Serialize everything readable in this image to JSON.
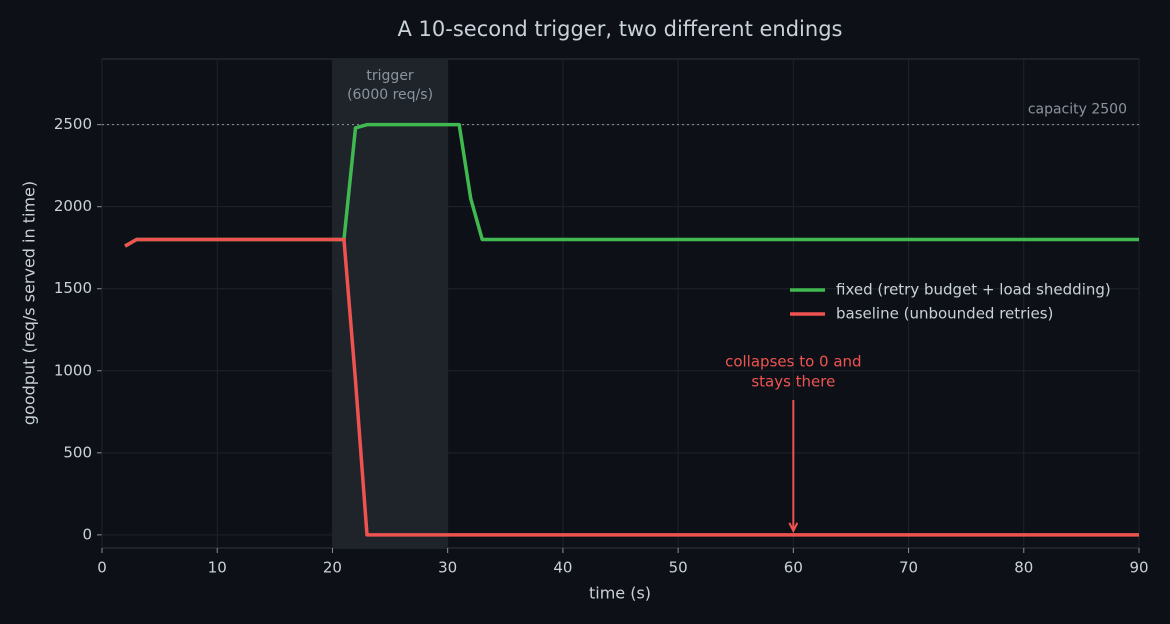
{
  "chart_data": {
    "type": "line",
    "title": "A 10-second trigger, two different endings",
    "x_label": "time (s)",
    "y_label": "goodput (req/s served in time)",
    "x": [
      2,
      3,
      21,
      22,
      23,
      31,
      32,
      33,
      90
    ],
    "series": [
      {
        "name": "fixed (retry budget + load shedding)",
        "color": "#3fb950",
        "values": [
          1760,
          1800,
          1800,
          2480,
          2500,
          2500,
          2050,
          1800,
          1800
        ]
      },
      {
        "name": "baseline (unbounded retries)",
        "color": "#ef5350",
        "values": [
          1760,
          1800,
          1800,
          940,
          0,
          0,
          0,
          0,
          0
        ]
      }
    ],
    "xlim": [
      0,
      90
    ],
    "xticks": [
      0,
      10,
      20,
      30,
      40,
      50,
      60,
      70,
      80,
      90
    ],
    "ylim": [
      -80,
      2900
    ],
    "yticks": [
      0,
      500,
      1000,
      1500,
      2000,
      2500
    ],
    "grid": true,
    "legend": "right",
    "shade": {
      "x0": 20,
      "x1": 30,
      "label": [
        "trigger",
        "(6000 req/s)"
      ]
    },
    "capacity": {
      "value": 2500,
      "label": "capacity 2500"
    },
    "annotation": {
      "text": [
        "collapses to 0 and",
        "stays there"
      ],
      "x": 60,
      "y": 0,
      "color": "#ef5350"
    }
  }
}
